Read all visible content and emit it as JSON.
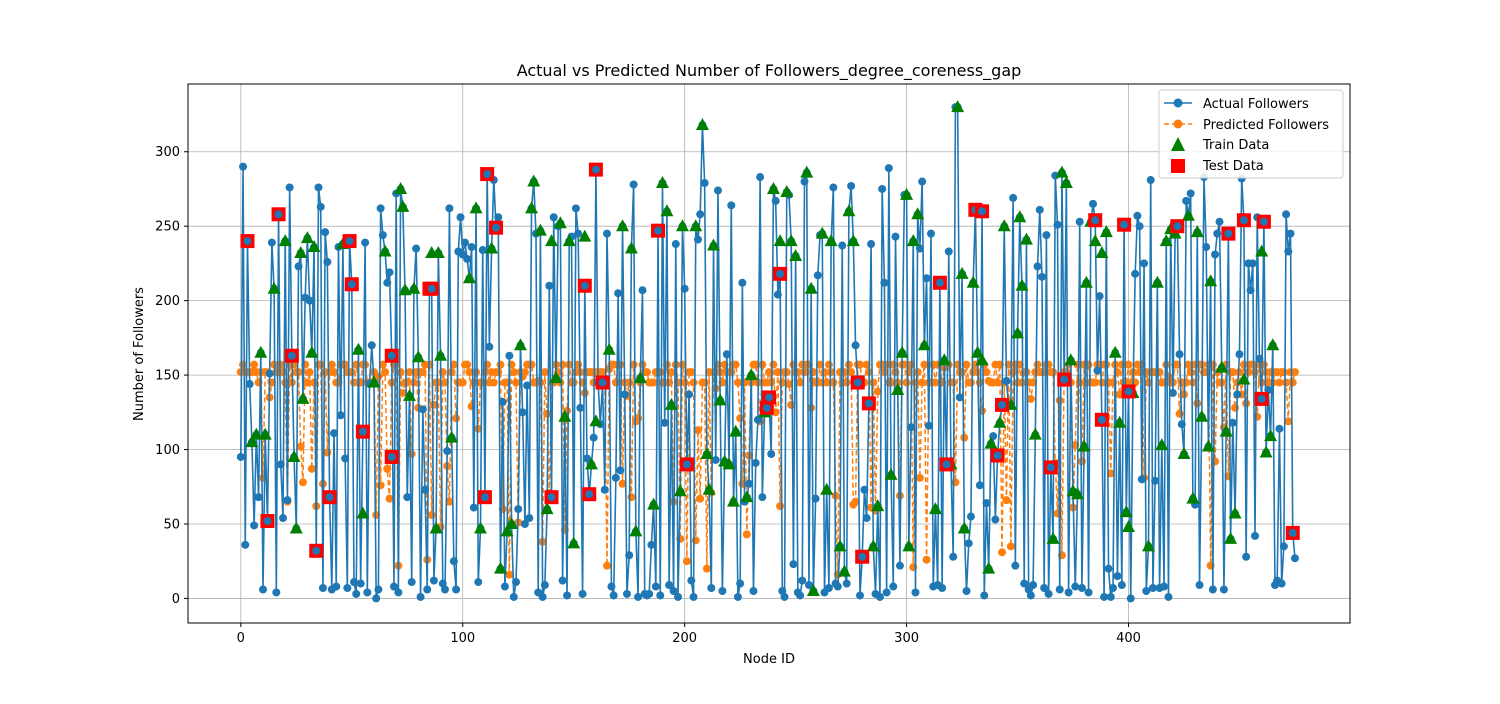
{
  "chart_data": {
    "type": "line",
    "title": "Actual vs Predicted Number of Followers_degree_coreness_gap",
    "xlabel": "Node ID",
    "ylabel": "Number of Followers",
    "xlim": [
      -23.8,
      499.8
    ],
    "ylim": [
      -16.5,
      345.5
    ],
    "xticks": [
      0,
      100,
      200,
      300,
      400
    ],
    "yticks": [
      0,
      50,
      100,
      150,
      200,
      250,
      300
    ],
    "grid": true,
    "legend_position": "top-right",
    "n_points": 476,
    "legend": [
      "Actual Followers",
      "Predicted Followers",
      "Train Data",
      "Test Data"
    ],
    "colors": {
      "actual": "#1f77b4",
      "predicted": "#ff7f0e",
      "train": "#008000",
      "test": "#ff0000"
    },
    "series": [
      {
        "name": "Actual Followers",
        "style": "solid line with circle markers",
        "x_range": [
          0,
          475
        ],
        "key_points": [
          [
            0,
            95
          ],
          [
            2,
            36
          ],
          [
            3,
            240
          ],
          [
            5,
            0
          ],
          [
            8,
            68
          ],
          [
            12,
            52
          ],
          [
            17,
            258
          ],
          [
            23,
            163
          ],
          [
            34,
            32
          ],
          [
            40,
            68
          ],
          [
            50,
            211
          ],
          [
            70,
            272
          ],
          [
            110,
            285
          ],
          [
            160,
            288
          ],
          [
            200,
            208
          ],
          [
            208,
            318
          ],
          [
            226,
            212
          ],
          [
            236,
            250
          ],
          [
            243,
            218
          ],
          [
            255,
            287
          ],
          [
            290,
            212
          ],
          [
            322,
            330
          ],
          [
            330,
            261
          ],
          [
            370,
            280
          ],
          [
            395,
            15
          ],
          [
            405,
            250
          ],
          [
            440,
            245
          ],
          [
            452,
            254
          ],
          [
            475,
            27
          ]
        ]
      },
      {
        "name": "Predicted Followers",
        "style": "dashed line with circle markers",
        "typical_values": [
          145,
          152,
          157
        ],
        "min": 15,
        "max": 157
      },
      {
        "name": "Train Data",
        "marker": "triangle",
        "points": [
          [
            5,
            105
          ],
          [
            7,
            110
          ],
          [
            9,
            165
          ],
          [
            11,
            110
          ],
          [
            15,
            208
          ],
          [
            20,
            240
          ],
          [
            24,
            95
          ],
          [
            25,
            47
          ],
          [
            27,
            232
          ],
          [
            28,
            134
          ],
          [
            30,
            242
          ],
          [
            32,
            165
          ],
          [
            33,
            236
          ],
          [
            46,
            238
          ],
          [
            53,
            167
          ],
          [
            55,
            57
          ],
          [
            60,
            145
          ],
          [
            65,
            233
          ],
          [
            72,
            275
          ],
          [
            73,
            263
          ],
          [
            74,
            207
          ],
          [
            76,
            136
          ],
          [
            78,
            208
          ],
          [
            80,
            162
          ],
          [
            86,
            232
          ],
          [
            88,
            47
          ],
          [
            89,
            232
          ],
          [
            90,
            163
          ],
          [
            95,
            108
          ],
          [
            103,
            215
          ],
          [
            106,
            262
          ],
          [
            108,
            47
          ],
          [
            113,
            235
          ],
          [
            117,
            20
          ],
          [
            120,
            45
          ],
          [
            122,
            50
          ],
          [
            126,
            170
          ],
          [
            131,
            262
          ],
          [
            132,
            280
          ],
          [
            135,
            247
          ],
          [
            138,
            60
          ],
          [
            140,
            240
          ],
          [
            142,
            148
          ],
          [
            144,
            252
          ],
          [
            146,
            122
          ],
          [
            148,
            240
          ],
          [
            150,
            37
          ],
          [
            155,
            243
          ],
          [
            158,
            90
          ],
          [
            160,
            119
          ],
          [
            166,
            167
          ],
          [
            172,
            250
          ],
          [
            176,
            235
          ],
          [
            178,
            45
          ],
          [
            180,
            148
          ],
          [
            186,
            63
          ],
          [
            190,
            279
          ],
          [
            192,
            260
          ],
          [
            194,
            130
          ],
          [
            198,
            72
          ],
          [
            199,
            250
          ],
          [
            205,
            250
          ],
          [
            208,
            318
          ],
          [
            210,
            97
          ],
          [
            211,
            73
          ],
          [
            213,
            237
          ],
          [
            216,
            133
          ],
          [
            218,
            92
          ],
          [
            220,
            90
          ],
          [
            222,
            65
          ],
          [
            223,
            112
          ],
          [
            228,
            68
          ],
          [
            230,
            150
          ],
          [
            236,
            125
          ],
          [
            240,
            275
          ],
          [
            243,
            240
          ],
          [
            246,
            273
          ],
          [
            248,
            240
          ],
          [
            250,
            230
          ],
          [
            255,
            286
          ],
          [
            257,
            208
          ],
          [
            258,
            5
          ],
          [
            262,
            245
          ],
          [
            264,
            73
          ],
          [
            266,
            240
          ],
          [
            270,
            35
          ],
          [
            272,
            18
          ],
          [
            274,
            260
          ],
          [
            276,
            240
          ],
          [
            285,
            35
          ],
          [
            287,
            62
          ],
          [
            293,
            83
          ],
          [
            296,
            140
          ],
          [
            298,
            165
          ],
          [
            300,
            271
          ],
          [
            301,
            35
          ],
          [
            303,
            240
          ],
          [
            305,
            258
          ],
          [
            308,
            170
          ],
          [
            313,
            60
          ],
          [
            317,
            160
          ],
          [
            320,
            90
          ],
          [
            323,
            330
          ],
          [
            325,
            218
          ],
          [
            326,
            47
          ],
          [
            330,
            212
          ],
          [
            332,
            165
          ],
          [
            334,
            160
          ],
          [
            337,
            20
          ],
          [
            338,
            104
          ],
          [
            342,
            118
          ],
          [
            344,
            250
          ],
          [
            347,
            130
          ],
          [
            350,
            178
          ],
          [
            351,
            256
          ],
          [
            352,
            210
          ],
          [
            354,
            241
          ],
          [
            358,
            110
          ],
          [
            366,
            40
          ],
          [
            370,
            286
          ],
          [
            372,
            279
          ],
          [
            374,
            160
          ],
          [
            375,
            72
          ],
          [
            377,
            70
          ],
          [
            380,
            102
          ],
          [
            381,
            212
          ],
          [
            383,
            253
          ],
          [
            385,
            240
          ],
          [
            388,
            232
          ],
          [
            390,
            246
          ],
          [
            394,
            165
          ],
          [
            396,
            118
          ],
          [
            399,
            58
          ],
          [
            400,
            48
          ],
          [
            402,
            138
          ],
          [
            409,
            35
          ],
          [
            413,
            212
          ],
          [
            415,
            103
          ],
          [
            417,
            240
          ],
          [
            419,
            248
          ],
          [
            421,
            245
          ],
          [
            425,
            97
          ],
          [
            427,
            257
          ],
          [
            429,
            67
          ],
          [
            431,
            246
          ],
          [
            433,
            122
          ],
          [
            436,
            102
          ],
          [
            437,
            213
          ],
          [
            442,
            155
          ],
          [
            444,
            112
          ],
          [
            446,
            40
          ],
          [
            448,
            57
          ],
          [
            452,
            147
          ],
          [
            460,
            233
          ],
          [
            462,
            98
          ],
          [
            464,
            109
          ],
          [
            465,
            170
          ]
        ]
      },
      {
        "name": "Test Data",
        "marker": "square",
        "points": [
          [
            3,
            240
          ],
          [
            12,
            52
          ],
          [
            17,
            258
          ],
          [
            23,
            163
          ],
          [
            34,
            32
          ],
          [
            40,
            68
          ],
          [
            49,
            240
          ],
          [
            50,
            211
          ],
          [
            55,
            112
          ],
          [
            68,
            95
          ],
          [
            68,
            163
          ],
          [
            85,
            208
          ],
          [
            86,
            208
          ],
          [
            110,
            68
          ],
          [
            111,
            285
          ],
          [
            115,
            249
          ],
          [
            140,
            68
          ],
          [
            155,
            210
          ],
          [
            157,
            70
          ],
          [
            160,
            288
          ],
          [
            163,
            145
          ],
          [
            188,
            247
          ],
          [
            201,
            90
          ],
          [
            237,
            128
          ],
          [
            238,
            135
          ],
          [
            243,
            218
          ],
          [
            278,
            145
          ],
          [
            280,
            28
          ],
          [
            283,
            131
          ],
          [
            315,
            212
          ],
          [
            318,
            90
          ],
          [
            331,
            261
          ],
          [
            334,
            260
          ],
          [
            341,
            96
          ],
          [
            343,
            130
          ],
          [
            365,
            88
          ],
          [
            371,
            147
          ],
          [
            385,
            254
          ],
          [
            388,
            120
          ],
          [
            398,
            251
          ],
          [
            400,
            139
          ],
          [
            422,
            250
          ],
          [
            445,
            245
          ],
          [
            452,
            254
          ],
          [
            460,
            134
          ],
          [
            461,
            253
          ],
          [
            474,
            44
          ]
        ]
      }
    ]
  }
}
